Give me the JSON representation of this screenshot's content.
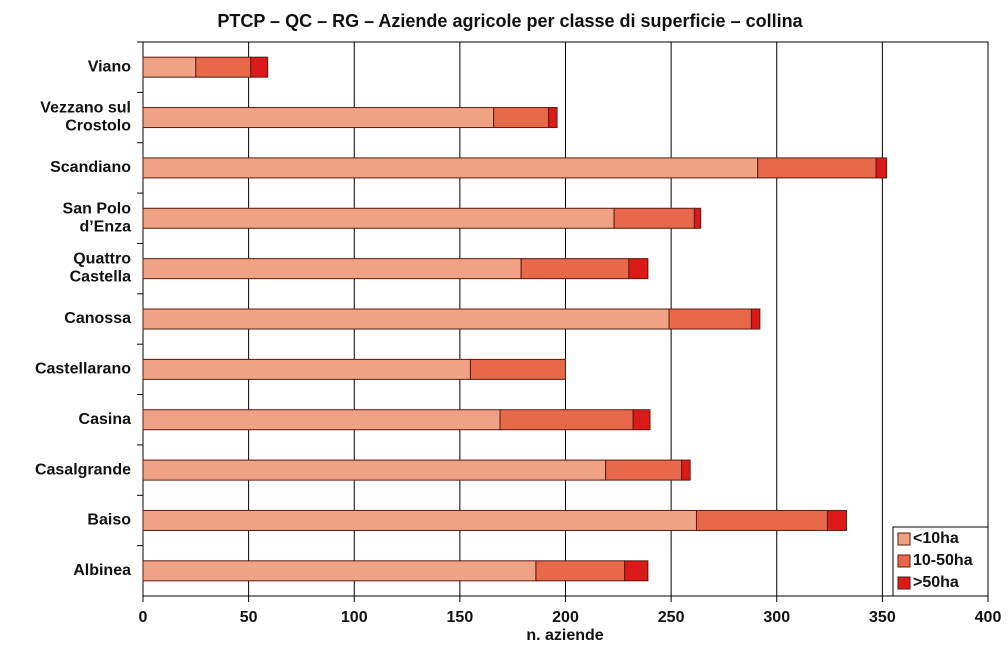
{
  "chart_data": {
    "type": "stacked-barh",
    "title": "PTCP – QC – RG – Aziende agricole per classe di superficie – collina",
    "xlabel": "n. aziende",
    "categories": [
      "Viano",
      [
        "Vezzano sul",
        "Crostolo"
      ],
      "Scandiano",
      [
        "San Polo",
        "d’Enza"
      ],
      [
        "Quattro",
        "Castella"
      ],
      "Canossa",
      "Castellarano",
      "Casina",
      "Casalgrande",
      "Baiso",
      "Albinea"
    ],
    "series": [
      {
        "name": "<10ha",
        "color": "#f0a285",
        "values": [
          25,
          166,
          291,
          223,
          179,
          249,
          155,
          169,
          219,
          262,
          186
        ]
      },
      {
        "name": "10-50ha",
        "color": "#e8694a",
        "values": [
          26,
          26,
          56,
          38,
          51,
          39,
          45,
          63,
          36,
          62,
          42
        ]
      },
      {
        "name": ">50ha",
        "color": "#dc1a1a",
        "values": [
          8,
          4,
          5,
          3,
          9,
          4,
          0,
          8,
          4,
          9,
          11
        ]
      }
    ],
    "xlim": [
      0,
      400
    ],
    "xticks": [
      0,
      50,
      100,
      150,
      200,
      250,
      300,
      350,
      400
    ],
    "grid": true,
    "legend": "lower right"
  }
}
